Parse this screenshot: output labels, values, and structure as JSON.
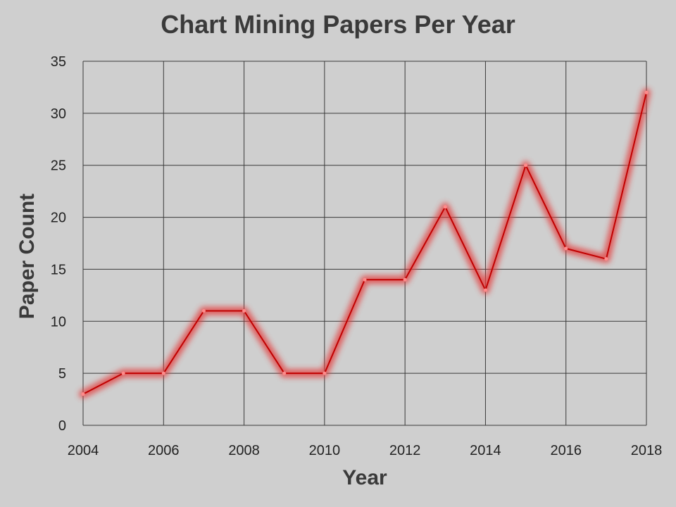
{
  "chart_data": {
    "type": "line",
    "title": "Chart Mining Papers Per Year",
    "xlabel": "Year",
    "ylabel": "Paper Count",
    "x": [
      2004,
      2005,
      2006,
      2007,
      2008,
      2009,
      2010,
      2011,
      2012,
      2013,
      2014,
      2015,
      2016,
      2017,
      2018
    ],
    "series": [
      {
        "values": [
          3,
          5,
          5,
          11,
          11,
          5,
          5,
          14,
          14,
          21,
          13,
          25,
          17,
          16,
          32
        ]
      }
    ],
    "xlim": [
      2004,
      2018
    ],
    "ylim": [
      0,
      35
    ],
    "xticks": [
      2004,
      2006,
      2008,
      2010,
      2012,
      2014,
      2016,
      2018
    ],
    "yticks": [
      0,
      5,
      10,
      15,
      20,
      25,
      30,
      35
    ],
    "grid": true,
    "colors": {
      "line": "#c00000",
      "glow": "#e53a3a",
      "grid": "#3a3a3a",
      "background": "#cfcfcf"
    }
  }
}
